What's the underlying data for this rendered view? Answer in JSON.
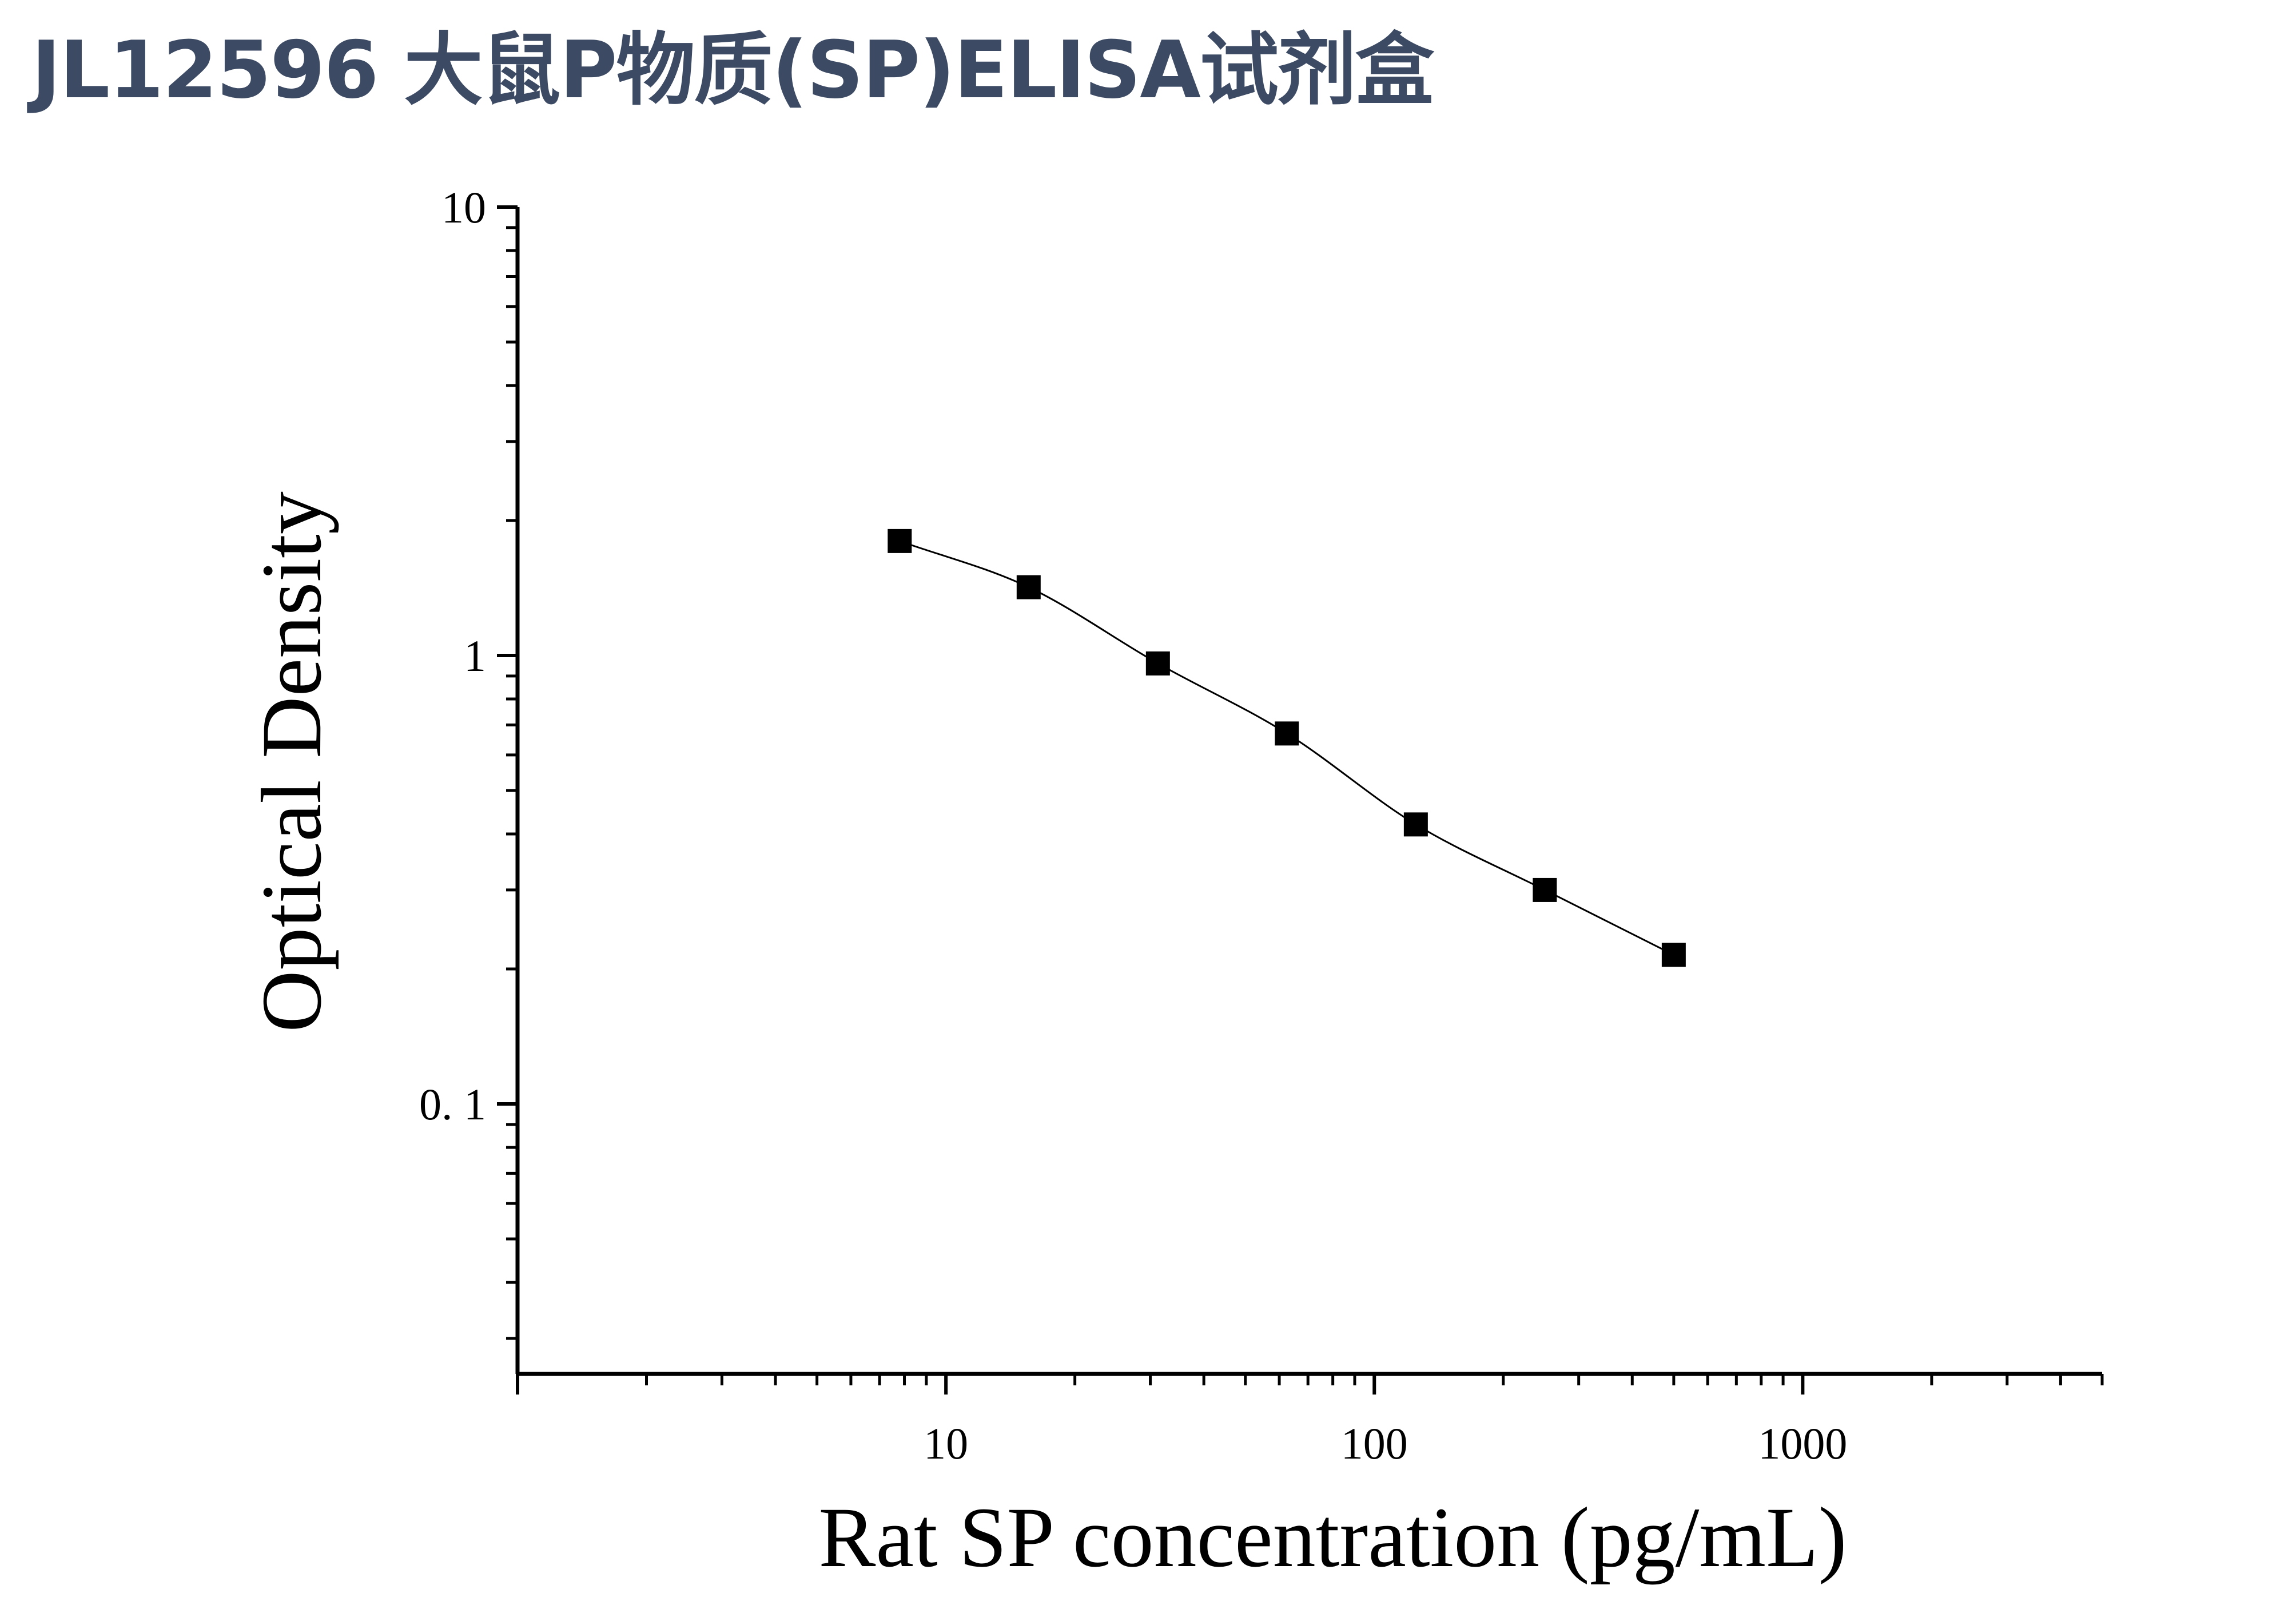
{
  "title": "JL12596 大鼠P物质(SP)ELISA试剂盒",
  "colors": {
    "title": "#3c4a64",
    "axis": "#000000",
    "marker": "#000000",
    "curve": "#000000"
  },
  "chart_data": {
    "type": "scatter",
    "title": "",
    "xlabel": "Rat SP concentration (pg/mL)",
    "ylabel": "Optical Density",
    "x_scale": "log",
    "y_scale": "log",
    "xlim": [
      1,
      5000
    ],
    "ylim": [
      0.025,
      10
    ],
    "x_ticks": [
      {
        "value": 10,
        "label": "10"
      },
      {
        "value": 100,
        "label": "100"
      },
      {
        "value": 1000,
        "label": "1000"
      }
    ],
    "y_ticks": [
      {
        "value": 10,
        "label": "10"
      },
      {
        "value": 1,
        "label": "1"
      },
      {
        "value": 0.1,
        "label": "0. 1"
      }
    ],
    "grid": false,
    "legend": "none",
    "marker": "square",
    "fit_curve": true,
    "series": [
      {
        "x": [
          7.8,
          15.6,
          31.25,
          62.5,
          125,
          250,
          500
        ],
        "y": [
          1.8,
          1.42,
          0.96,
          0.67,
          0.42,
          0.3,
          0.215
        ]
      }
    ]
  }
}
